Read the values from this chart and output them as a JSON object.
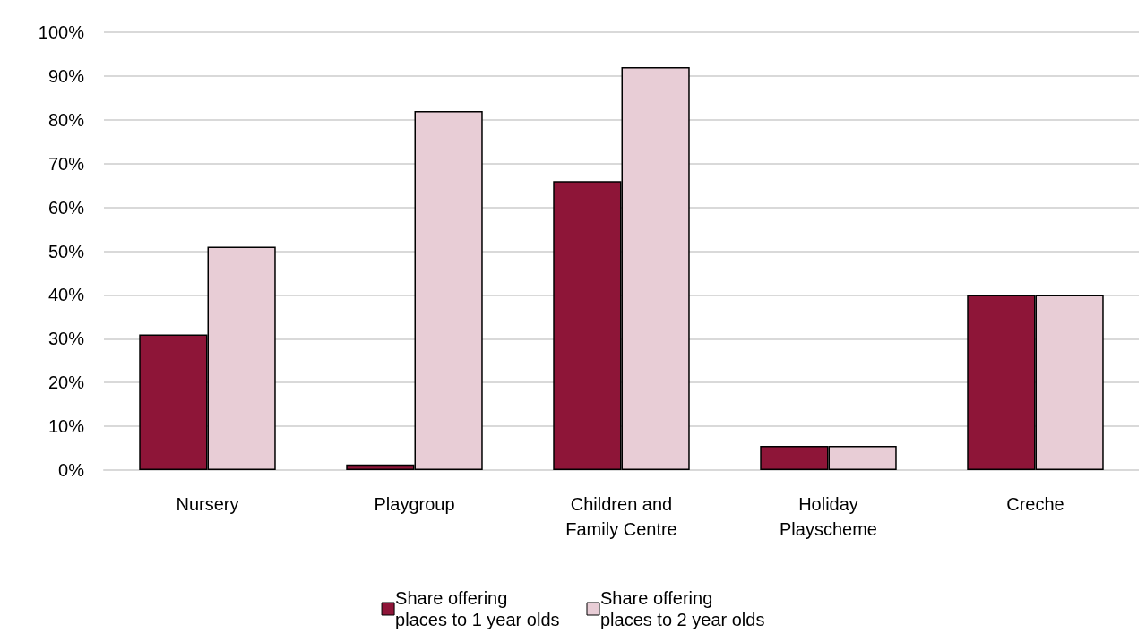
{
  "chart_data": {
    "type": "bar",
    "categories": [
      "Nursery",
      "Playgroup",
      "Children and\nFamily Centre",
      "Holiday\nPlayscheme",
      "Creche"
    ],
    "series": [
      {
        "name": "Share offering\nplaces to 1 year olds",
        "color": "#8e1538",
        "values": [
          31,
          1.3,
          66,
          5.5,
          40
        ]
      },
      {
        "name": "Share offering\nplaces to 2 year olds",
        "color": "#e8cdd6",
        "values": [
          51,
          82,
          92,
          5.5,
          40
        ]
      }
    ],
    "ylim": [
      0,
      100
    ],
    "yticks": [
      {
        "value": 0,
        "label": "0%"
      },
      {
        "value": 10,
        "label": "10%"
      },
      {
        "value": 20,
        "label": "20%"
      },
      {
        "value": 30,
        "label": "30%"
      },
      {
        "value": 40,
        "label": "40%"
      },
      {
        "value": 50,
        "label": "50%"
      },
      {
        "value": 60,
        "label": "60%"
      },
      {
        "value": 70,
        "label": "70%"
      },
      {
        "value": 80,
        "label": "80%"
      },
      {
        "value": 90,
        "label": "90%"
      },
      {
        "value": 100,
        "label": "100%"
      }
    ],
    "grid": "y",
    "legend": "bottom"
  }
}
